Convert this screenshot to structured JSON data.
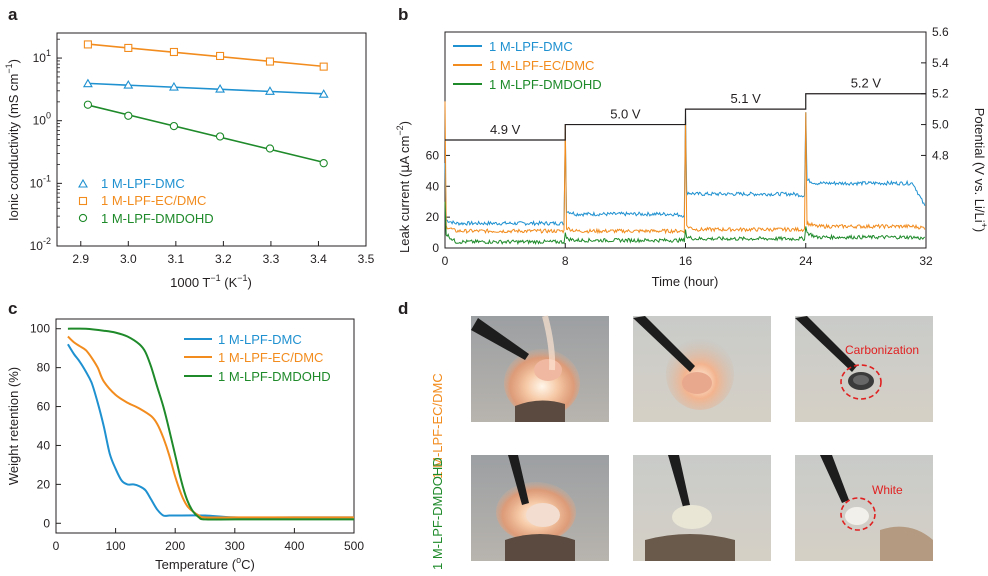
{
  "colors": {
    "dmc": "#1f91d0",
    "ecdmc": "#f28c1e",
    "dmdohd": "#1e8a2a",
    "potential": "#231f20",
    "annotation": "#e02020"
  },
  "panel_letters": {
    "a": "a",
    "b": "b",
    "c": "c",
    "d": "d"
  },
  "chart_data": [
    {
      "panel": "a",
      "type": "scatter",
      "title": "",
      "xlabel": "1000 T",
      "xlabel_sup": "−1",
      "xlabel_unit": " (K",
      "xlabel_unit_sup": "−1",
      "xlabel_close": ")",
      "ylabel": "Ionic conductivity (mS cm",
      "ylabel_sup": "−1",
      "ylabel_close": ")",
      "xlim": [
        2.85,
        3.5
      ],
      "ylim_log10": [
        -2,
        1.4
      ],
      "yscale": "log",
      "xticks": [
        "2.9",
        "3.0",
        "3.1",
        "3.2",
        "3.3",
        "3.4",
        "3.5"
      ],
      "xtick_values": [
        2.9,
        3.0,
        3.1,
        3.2,
        3.3,
        3.4,
        3.5
      ],
      "yticks_base": [
        "10",
        "10",
        "10",
        "10"
      ],
      "yticks_exp": [
        "-2",
        "-1",
        "0",
        "1"
      ],
      "ytick_values_log10": [
        -2,
        -1,
        0,
        1
      ],
      "legend_position": "bottom-left",
      "series": [
        {
          "name": "1 M-LPF-DMC",
          "marker": "triangle",
          "color_key": "dmc",
          "x": [
            2.915,
            3.0,
            3.096,
            3.193,
            3.298,
            3.411
          ],
          "y": [
            3.9,
            3.7,
            3.45,
            3.2,
            2.95,
            2.65
          ]
        },
        {
          "name": "1 M-LPF-EC/DMC",
          "marker": "square",
          "color_key": "ecdmc",
          "x": [
            2.915,
            3.0,
            3.096,
            3.193,
            3.298,
            3.411
          ],
          "y": [
            16.5,
            14.5,
            12.5,
            10.8,
            8.8,
            7.3
          ]
        },
        {
          "name": "1 M-LPF-DMDOHD",
          "marker": "circle",
          "color_key": "dmdohd",
          "x": [
            2.915,
            3.0,
            3.096,
            3.193,
            3.298,
            3.411
          ],
          "y": [
            1.8,
            1.2,
            0.82,
            0.56,
            0.36,
            0.21
          ]
        }
      ]
    },
    {
      "panel": "b",
      "type": "line",
      "title": "",
      "xlabel": "Time (hour)",
      "ylabel_left": "Leak current (",
      "ylabel_left_mu": "μ",
      "ylabel_left_rest": "A cm",
      "ylabel_left_sup": "−2",
      "ylabel_left_close": ")",
      "ylabel_right": "Potential (V vs. Li/Li",
      "ylabel_right_sup": "+",
      "ylabel_right_close": ")",
      "xlim": [
        0,
        32
      ],
      "ylim_left": [
        0,
        140
      ],
      "ylim_right": [
        4.2,
        5.6
      ],
      "xticks": [
        "0",
        "8",
        "16",
        "24",
        "32"
      ],
      "xtick_values": [
        0,
        8,
        16,
        24,
        32
      ],
      "yticks_left": [
        "0",
        "20",
        "40",
        "60"
      ],
      "ytick_values_left": [
        0,
        20,
        40,
        60
      ],
      "yticks_right": [
        "4.8",
        "5.0",
        "5.2",
        "5.4",
        "5.6"
      ],
      "ytick_values_right": [
        4.8,
        5.0,
        5.2,
        5.4,
        5.6
      ],
      "legend_position": "top-left",
      "potential_steps": [
        {
          "label": "4.9 V",
          "from": 0,
          "to": 8,
          "value": 4.9
        },
        {
          "label": "5.0 V",
          "from": 8,
          "to": 16,
          "value": 5.0
        },
        {
          "label": "5.1 V",
          "from": 16,
          "to": 24,
          "value": 5.1
        },
        {
          "label": "5.2 V",
          "from": 24,
          "to": 32,
          "value": 5.2
        }
      ],
      "series": [
        {
          "name": "1 M-LPF-DMC",
          "color_key": "dmc",
          "segments": [
            {
              "from": 0,
              "to": 8,
              "start": 18,
              "level": 16,
              "end": 16,
              "spike": 55
            },
            {
              "from": 8,
              "to": 16,
              "start": 24,
              "level": 22,
              "end": 21,
              "spike": 75
            },
            {
              "from": 16,
              "to": 24,
              "start": 36,
              "level": 35,
              "end": 34,
              "spike": 88
            },
            {
              "from": 24,
              "to": 32,
              "start": 44,
              "level": 42,
              "end": 27,
              "spike": 88
            }
          ]
        },
        {
          "name": "1 M-LPF-EC/DMC",
          "color_key": "ecdmc",
          "segments": [
            {
              "from": 0,
              "to": 8,
              "start": 14,
              "level": 11,
              "end": 11,
              "spike": 95
            },
            {
              "from": 8,
              "to": 16,
              "start": 13,
              "level": 11,
              "end": 11,
              "spike": 80
            },
            {
              "from": 16,
              "to": 24,
              "start": 14,
              "level": 12,
              "end": 12,
              "spike": 88
            },
            {
              "from": 24,
              "to": 32,
              "start": 16,
              "level": 14,
              "end": 13,
              "spike": 88
            }
          ]
        },
        {
          "name": "1 M-LPF-DMDOHD",
          "color_key": "dmdohd",
          "segments": [
            {
              "from": 0,
              "to": 8,
              "start": 9,
              "level": 4,
              "end": 4,
              "spike": 30
            },
            {
              "from": 8,
              "to": 16,
              "start": 6,
              "level": 5,
              "end": 5,
              "spike": 10
            },
            {
              "from": 16,
              "to": 24,
              "start": 7,
              "level": 6,
              "end": 6,
              "spike": 12
            },
            {
              "from": 24,
              "to": 32,
              "start": 10,
              "level": 7,
              "end": 6,
              "spike": 14
            }
          ]
        }
      ]
    },
    {
      "panel": "c",
      "type": "line",
      "title": "",
      "xlabel": "Temperature (",
      "xlabel_sup": "o",
      "xlabel_close": "C)",
      "ylabel": "Weight retention (%)",
      "xlim": [
        0,
        500
      ],
      "ylim": [
        -5,
        105
      ],
      "xticks": [
        "0",
        "100",
        "200",
        "300",
        "400",
        "500"
      ],
      "xtick_values": [
        0,
        100,
        200,
        300,
        400,
        500
      ],
      "yticks": [
        "0",
        "20",
        "40",
        "60",
        "80",
        "100"
      ],
      "ytick_values": [
        0,
        20,
        40,
        60,
        80,
        100
      ],
      "legend_position": "top-right",
      "series": [
        {
          "name": "1 M-LPF-DMC",
          "color_key": "dmc",
          "x": [
            20,
            30,
            40,
            50,
            60,
            70,
            80,
            90,
            100,
            110,
            120,
            130,
            140,
            150,
            160,
            170,
            180,
            190,
            200,
            250,
            300,
            400,
            500
          ],
          "y": [
            92,
            87,
            83,
            78,
            72,
            62,
            50,
            36,
            28,
            22,
            20,
            20,
            19,
            17,
            12,
            7,
            4,
            4,
            4,
            4,
            3,
            3,
            3
          ]
        },
        {
          "name": "1 M-LPF-EC/DMC",
          "color_key": "ecdmc",
          "x": [
            20,
            30,
            40,
            50,
            60,
            70,
            80,
            100,
            120,
            140,
            160,
            170,
            180,
            190,
            200,
            210,
            220,
            230,
            240,
            250,
            300,
            400,
            500
          ],
          "y": [
            96,
            93,
            91,
            89,
            85,
            80,
            73,
            66,
            62,
            59,
            55,
            51,
            44,
            35,
            24,
            15,
            9,
            6,
            4,
            3,
            3,
            3,
            3
          ]
        },
        {
          "name": "1 M-LPF-DMDOHD",
          "color_key": "dmdohd",
          "x": [
            20,
            50,
            80,
            100,
            120,
            140,
            150,
            160,
            170,
            180,
            190,
            200,
            210,
            220,
            230,
            240,
            250,
            300,
            400,
            500
          ],
          "y": [
            100,
            100,
            99,
            98,
            96,
            92,
            88,
            80,
            70,
            60,
            48,
            35,
            22,
            12,
            6,
            3,
            2,
            2,
            2,
            2
          ]
        }
      ]
    }
  ],
  "panel_d": {
    "row_labels": [
      "1 M-LPF-EC/DMC",
      "1 M-LPF-DMDOHD"
    ],
    "annotations": [
      "Carbonization",
      "White"
    ]
  }
}
